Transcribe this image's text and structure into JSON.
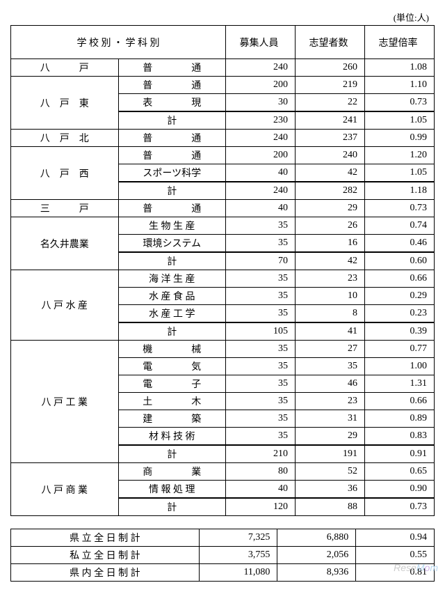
{
  "unit_label": "(単位:人)",
  "headers": {
    "school_dept": "学 校 別 ・ 学 科 別",
    "capacity": "募集人員",
    "applicants": "志望者数",
    "ratio": "志望倍率"
  },
  "schools": [
    {
      "name": "八　　　戸",
      "depts": [
        {
          "dept": "普　　　　通",
          "cap": "240",
          "app": "260",
          "ratio": "1.08"
        }
      ]
    },
    {
      "name": "八　戸　東",
      "depts": [
        {
          "dept": "普　　　　通",
          "cap": "200",
          "app": "219",
          "ratio": "1.10"
        },
        {
          "dept": "表　　　　現",
          "cap": "30",
          "app": "22",
          "ratio": "0.73"
        }
      ],
      "total": {
        "dept": "計",
        "cap": "230",
        "app": "241",
        "ratio": "1.05"
      }
    },
    {
      "name": "八　戸　北",
      "depts": [
        {
          "dept": "普　　　　通",
          "cap": "240",
          "app": "237",
          "ratio": "0.99"
        }
      ]
    },
    {
      "name": "八　戸　西",
      "depts": [
        {
          "dept": "普　　　　通",
          "cap": "200",
          "app": "240",
          "ratio": "1.20"
        },
        {
          "dept": "スポーツ科学",
          "cap": "40",
          "app": "42",
          "ratio": "1.05"
        }
      ],
      "total": {
        "dept": "計",
        "cap": "240",
        "app": "282",
        "ratio": "1.18"
      }
    },
    {
      "name": "三　　　戸",
      "depts": [
        {
          "dept": "普　　　　通",
          "cap": "40",
          "app": "29",
          "ratio": "0.73"
        }
      ]
    },
    {
      "name": "名久井農業",
      "depts": [
        {
          "dept": "生 物 生 産",
          "cap": "35",
          "app": "26",
          "ratio": "0.74"
        },
        {
          "dept": "環境システム",
          "cap": "35",
          "app": "16",
          "ratio": "0.46"
        }
      ],
      "total": {
        "dept": "計",
        "cap": "70",
        "app": "42",
        "ratio": "0.60"
      }
    },
    {
      "name": "八 戸 水 産",
      "depts": [
        {
          "dept": "海 洋 生 産",
          "cap": "35",
          "app": "23",
          "ratio": "0.66"
        },
        {
          "dept": "水 産 食 品",
          "cap": "35",
          "app": "10",
          "ratio": "0.29"
        },
        {
          "dept": "水 産 工 学",
          "cap": "35",
          "app": "8",
          "ratio": "0.23"
        }
      ],
      "total": {
        "dept": "計",
        "cap": "105",
        "app": "41",
        "ratio": "0.39"
      }
    },
    {
      "name": "八 戸 工 業",
      "depts": [
        {
          "dept": "機　　　　械",
          "cap": "35",
          "app": "27",
          "ratio": "0.77"
        },
        {
          "dept": "電　　　　気",
          "cap": "35",
          "app": "35",
          "ratio": "1.00"
        },
        {
          "dept": "電　　　　子",
          "cap": "35",
          "app": "46",
          "ratio": "1.31"
        },
        {
          "dept": "土　　　　木",
          "cap": "35",
          "app": "23",
          "ratio": "0.66"
        },
        {
          "dept": "建　　　　築",
          "cap": "35",
          "app": "31",
          "ratio": "0.89"
        },
        {
          "dept": "材 料 技 術",
          "cap": "35",
          "app": "29",
          "ratio": "0.83"
        }
      ],
      "total": {
        "dept": "計",
        "cap": "210",
        "app": "191",
        "ratio": "0.91"
      }
    },
    {
      "name": "八 戸 商 業",
      "depts": [
        {
          "dept": "商　　　　業",
          "cap": "80",
          "app": "52",
          "ratio": "0.65"
        },
        {
          "dept": "情 報 処 理",
          "cap": "40",
          "app": "36",
          "ratio": "0.90"
        }
      ],
      "total": {
        "dept": "計",
        "cap": "120",
        "app": "88",
        "ratio": "0.73"
      }
    }
  ],
  "summary": [
    {
      "label": "県 立 全 日 制 計",
      "cap": "7,325",
      "app": "6,880",
      "ratio": "0.94"
    },
    {
      "label": "私 立 全 日 制 計",
      "cap": "3,755",
      "app": "2,056",
      "ratio": "0.55"
    },
    {
      "label": "県 内 全 日 制 計",
      "cap": "11,080",
      "app": "8,936",
      "ratio": "0.81"
    }
  ],
  "watermark": "ReseMom"
}
